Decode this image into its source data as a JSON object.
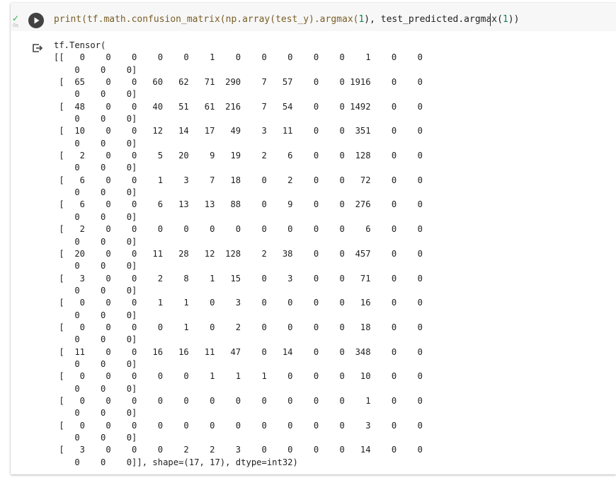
{
  "cell": {
    "execution_time": "0s",
    "code": {
      "p1": "print(tf.math.confusion_matrix(np.array(test_y).argmax(",
      "n1": "1",
      "p2": "), test_predicted.argmax(",
      "n2": "1",
      "p3": "))"
    }
  },
  "output": {
    "text": "tf.Tensor(\n[[   0    0    0    0    0    1    0    0    0    0    0    1    0    0\n    0    0    0]\n [  65    0    0   60   62   71  290    7   57    0    0 1916    0    0\n    0    0    0]\n [  48    0    0   40   51   61  216    7   54    0    0 1492    0    0\n    0    0    0]\n [  10    0    0   12   14   17   49    3   11    0    0  351    0    0\n    0    0    0]\n [   2    0    0    5   20    9   19    2    6    0    0  128    0    0\n    0    0    0]\n [   6    0    0    1    3    7   18    0    2    0    0   72    0    0\n    0    0    0]\n [   6    0    0    6   13   13   88    0    9    0    0  276    0    0\n    0    0    0]\n [   2    0    0    0    0    0    0    0    0    0    0    6    0    0\n    0    0    0]\n [  20    0    0   11   28   12  128    2   38    0    0  457    0    0\n    0    0    0]\n [   3    0    0    2    8    1   15    0    3    0    0   71    0    0\n    0    0    0]\n [   0    0    0    1    1    0    3    0    0    0    0   16    0    0\n    0    0    0]\n [   0    0    0    0    1    0    2    0    0    0    0   18    0    0\n    0    0    0]\n [  11    0    0   16   16   11   47    0   14    0    0  348    0    0\n    0    0    0]\n [   0    0    0    0    0    1    1    1    0    0    0   10    0    0\n    0    0    0]\n [   0    0    0    0    0    0    0    0    0    0    0    1    0    0\n    0    0    0]\n [   0    0    0    0    0    0    0    0    0    0    0    3    0    0\n    0    0    0]\n [   3    0    0    0    2    2    3    0    0    0    0   14    0    0\n    0    0    0]], shape=(17, 17), dtype=int32)"
  },
  "colors": {
    "accent_success": "#2fa84f",
    "run_button_bg": "#424242",
    "code_background": "#f7f7f7",
    "number_token": "#098658",
    "builtin_token": "#795e26"
  },
  "icons": {
    "status": "checkmark-icon",
    "run": "play-icon",
    "output": "output-redirect-icon"
  }
}
